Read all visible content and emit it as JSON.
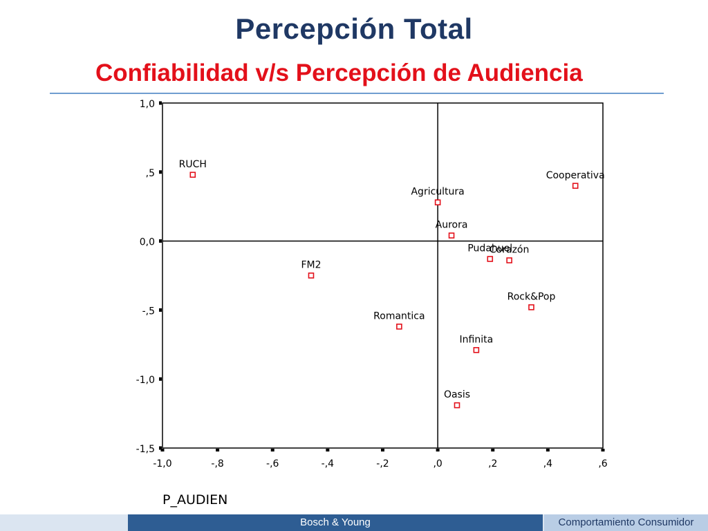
{
  "slide": {
    "title": "Percepción Total",
    "subtitle": "Confiabilidad v/s Percepción de Audiencia",
    "footer_left": "Bosch & Young",
    "footer_right": "Comportamiento Consumidor",
    "colors": {
      "title": "#1f3864",
      "subtitle": "#e3101a",
      "marker": "#e3101a",
      "footer_left_bg": "#2e5d93",
      "footer_right_bg": "#b9cde5"
    }
  },
  "chart_data": {
    "type": "scatter",
    "title": "",
    "xlabel": "P_AUDIEN",
    "ylabel": "",
    "xlim": [
      -1.0,
      0.6
    ],
    "ylim": [
      -1.5,
      1.0
    ],
    "x_ticks": [
      -1.0,
      -0.8,
      -0.6,
      -0.4,
      -0.2,
      0.0,
      0.2,
      0.4,
      0.6
    ],
    "x_tick_labels": [
      "-1,0",
      "-,8",
      "-,6",
      "-,4",
      "-,2",
      ",0",
      ",2",
      ",4",
      ",6"
    ],
    "y_ticks": [
      1.0,
      0.5,
      0.0,
      -0.5,
      -1.0,
      -1.5
    ],
    "y_tick_labels": [
      "1,0",
      ",5",
      "0,0",
      "-,5",
      "-1,0",
      "-1,5"
    ],
    "reference_lines": {
      "x": 0.0,
      "y": 0.0
    },
    "grid": false,
    "points": [
      {
        "label": "RUCH",
        "x": -0.89,
        "y": 0.48
      },
      {
        "label": "Cooperativa",
        "x": 0.5,
        "y": 0.4
      },
      {
        "label": "Agricultura",
        "x": 0.0,
        "y": 0.28
      },
      {
        "label": "Aurora",
        "x": 0.05,
        "y": 0.04
      },
      {
        "label": "Pudahuel",
        "x": 0.19,
        "y": -0.13
      },
      {
        "label": "Corazón",
        "x": 0.26,
        "y": -0.14
      },
      {
        "label": "FM2",
        "x": -0.46,
        "y": -0.25
      },
      {
        "label": "Rock&Pop",
        "x": 0.34,
        "y": -0.48
      },
      {
        "label": "Romantica",
        "x": -0.14,
        "y": -0.62
      },
      {
        "label": "Infinita",
        "x": 0.14,
        "y": -0.79
      },
      {
        "label": "Oasis",
        "x": 0.07,
        "y": -1.19
      }
    ]
  }
}
